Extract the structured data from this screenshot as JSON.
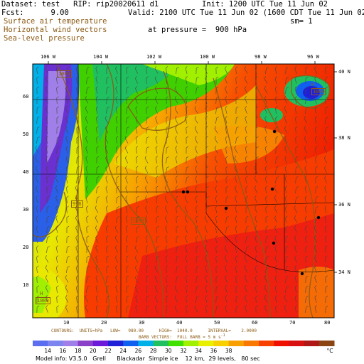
{
  "header": {
    "dataset_line": "Dataset: test   RIP: rip20020611 d1",
    "fcst_line": "Fcst:      9.00",
    "init_line": "Init: 1200 UTC Tue 11 Jun 02",
    "valid_line": "Valid: 2100 UTC Tue 11 Jun 02 (1600 CDT Tue 11 Jun 02)",
    "field1": "Surface air temperature",
    "field2": "Horizontal wind vectors",
    "field3": "Sea-level pressure",
    "pressure_line": "at pressure =  900 hPa",
    "sm_line": "sm= 1"
  },
  "axes": {
    "top_longitudes": [
      "106 W",
      "104 W",
      "102 W",
      "100 W",
      "98 W",
      "96 W"
    ],
    "right_latitudes": [
      "40 N",
      "38 N",
      "36 N",
      "34 N"
    ],
    "left_grid": [
      "60",
      "50",
      "40",
      "30",
      "20",
      "10"
    ],
    "bottom_grid": [
      "10",
      "20",
      "30",
      "40",
      "50",
      "60",
      "70",
      "80"
    ]
  },
  "pressure_labels": [
    {
      "text": "1000"
    },
    {
      "text": "996"
    },
    {
      "text": "1000"
    },
    {
      "text": "1000"
    },
    {
      "text": "1000"
    }
  ],
  "centers": [
    "L",
    "H",
    "H"
  ],
  "footer": {
    "contours": "CONTOURS:  UNITS=hPa   LOW=   980.00      HIGH=  1040.0      INTERVAL=    2.0000",
    "barbs": "BARB VECTORS:  FULL BARB = 5 m s",
    "barbs_sup": "-1",
    "model_info": "Model info: V3.5.0   Grell      Blackadar  Simple ice    12 km,  29 levels,   80 sec"
  },
  "colorbar": {
    "labels": [
      "14",
      "16",
      "18",
      "20",
      "22",
      "24",
      "26",
      "28",
      "30",
      "32",
      "34",
      "36",
      "38"
    ],
    "unit": "°C",
    "colors": [
      "#5b6ef0",
      "#7c84f0",
      "#a080e8",
      "#8a40c8",
      "#6a1ad8",
      "#2020d8",
      "#1060f0",
      "#00b0e8",
      "#20c060",
      "#40e000",
      "#a0f000",
      "#e8f000",
      "#f8d000",
      "#f8a000",
      "#f87800",
      "#f84000",
      "#f01000",
      "#d81010",
      "#b01818",
      "#8b4513"
    ]
  }
}
